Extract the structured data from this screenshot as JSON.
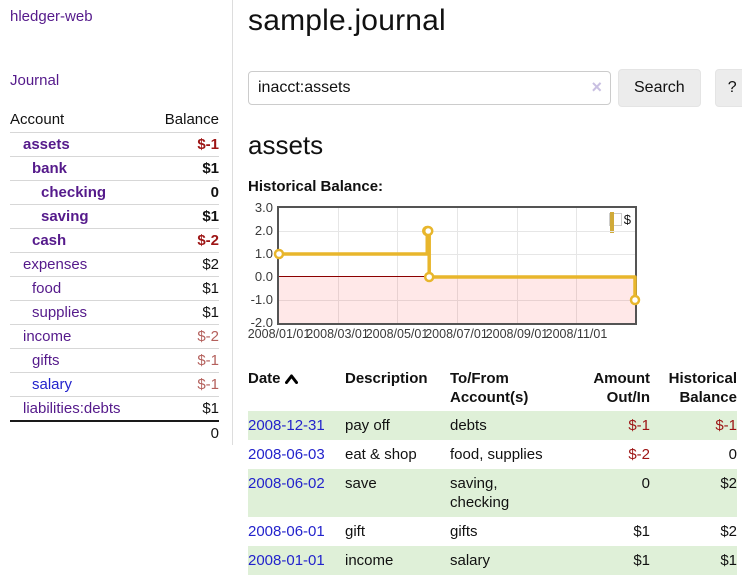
{
  "sidebar": {
    "brand": "hledger-web",
    "nav": [
      {
        "label": "Journal"
      }
    ],
    "accounts_table": {
      "headers": {
        "account": "Account",
        "balance": "Balance"
      },
      "rows": [
        {
          "name": "assets",
          "depth": 1,
          "bold": true,
          "balance": "$-1",
          "balance_tone": "neg-strong",
          "link_tone": "purple"
        },
        {
          "name": "bank",
          "depth": 2,
          "bold": true,
          "balance": "$1",
          "balance_tone": "normal",
          "link_tone": "purple"
        },
        {
          "name": "checking",
          "depth": 3,
          "bold": true,
          "balance": "0",
          "balance_tone": "normal",
          "link_tone": "purple"
        },
        {
          "name": "saving",
          "depth": 3,
          "bold": true,
          "balance": "$1",
          "balance_tone": "normal",
          "link_tone": "purple"
        },
        {
          "name": "cash",
          "depth": 2,
          "bold": true,
          "balance": "$-2",
          "balance_tone": "neg-strong",
          "link_tone": "purple"
        },
        {
          "name": "expenses",
          "depth": 1,
          "bold": false,
          "balance": "$2",
          "balance_tone": "normal",
          "link_tone": "purple"
        },
        {
          "name": "food",
          "depth": 2,
          "bold": false,
          "balance": "$1",
          "balance_tone": "normal",
          "link_tone": "purple"
        },
        {
          "name": "supplies",
          "depth": 2,
          "bold": false,
          "balance": "$1",
          "balance_tone": "normal",
          "link_tone": "purple"
        },
        {
          "name": "income",
          "depth": 1,
          "bold": false,
          "balance": "$-2",
          "balance_tone": "neg-soft",
          "link_tone": "purple"
        },
        {
          "name": "gifts",
          "depth": 2,
          "bold": false,
          "balance": "$-1",
          "balance_tone": "neg-soft",
          "link_tone": "purple"
        },
        {
          "name": "salary",
          "depth": 2,
          "bold": false,
          "balance": "$-1",
          "balance_tone": "neg-soft",
          "link_tone": "blue"
        },
        {
          "name": "liabilities:debts",
          "depth": 1,
          "bold": false,
          "balance": "$1",
          "balance_tone": "normal",
          "link_tone": "purple"
        }
      ],
      "total": "0"
    },
    "accent_color": "#551a8b"
  },
  "header": {
    "title": "sample.journal"
  },
  "search": {
    "value": "inacct:assets",
    "placeholder": "",
    "clear_icon": "×",
    "button_label": "Search",
    "help_label": "?"
  },
  "account_page": {
    "title": "assets",
    "chart_label": "Historical Balance:"
  },
  "chart_data": {
    "type": "line",
    "title": "Historical Balance",
    "steps": true,
    "series": [
      {
        "name": "$",
        "color": "#e8b62c",
        "points": [
          {
            "date": "2008-01-01",
            "value": 1
          },
          {
            "date": "2008-06-01",
            "value": 2
          },
          {
            "date": "2008-06-02",
            "value": 2
          },
          {
            "date": "2008-06-03",
            "value": 0
          },
          {
            "date": "2008-12-31",
            "value": -1
          }
        ]
      }
    ],
    "xlim": [
      "2008-01-01",
      "2008-12-31"
    ],
    "ylim": [
      -2,
      3
    ],
    "y_ticks": [
      "3.0",
      "2.0",
      "1.0",
      "0.0",
      "-1.0",
      "-2.0"
    ],
    "x_ticks": [
      "2008/01/01",
      "2008/03/01",
      "2008/05/01",
      "2008/07/01",
      "2008/09/01",
      "2008/11/01"
    ],
    "grid": true,
    "legend_position": "top-right",
    "legend": {
      "label": "$",
      "swatch_color": "#edc240"
    },
    "negative_region_color": "rgba(255,0,0,0.09)",
    "zero_line_color": "#8b0000"
  },
  "register_table": {
    "headers": {
      "date": "Date",
      "sort_icon": "chevron-up-icon",
      "description": "Description",
      "accounts": [
        "To/From",
        "Account(s)"
      ],
      "amount": [
        "Amount",
        "Out/In"
      ],
      "balance": [
        "Historical",
        "Balance"
      ]
    },
    "rows": [
      {
        "date": "2008-12-31",
        "description": "pay off",
        "accounts": "debts",
        "amount": "$-1",
        "amount_neg": true,
        "balance": "$-1",
        "balance_neg": true,
        "striped": true
      },
      {
        "date": "2008-06-03",
        "description": "eat & shop",
        "accounts": "food, supplies",
        "amount": "$-2",
        "amount_neg": true,
        "balance": "0",
        "balance_neg": false,
        "striped": false
      },
      {
        "date": "2008-06-02",
        "description": "save",
        "accounts": "saving, checking",
        "amount": "0",
        "amount_neg": false,
        "balance": "$2",
        "balance_neg": false,
        "striped": true
      },
      {
        "date": "2008-06-01",
        "description": "gift",
        "accounts": "gifts",
        "amount": "$1",
        "amount_neg": false,
        "balance": "$2",
        "balance_neg": false,
        "striped": false
      },
      {
        "date": "2008-01-01",
        "description": "income",
        "accounts": "salary",
        "amount": "$1",
        "amount_neg": false,
        "balance": "$1",
        "balance_neg": false,
        "striped": true
      }
    ]
  }
}
